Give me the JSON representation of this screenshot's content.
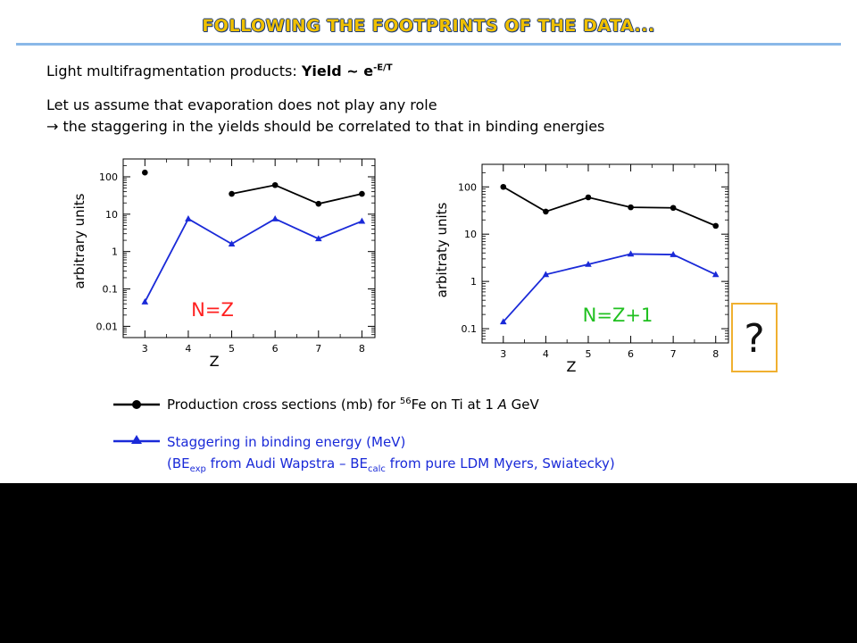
{
  "title": "FOLLOWING THE FOOTPRINTS OF THE DATA...",
  "line1": {
    "prefix": "Light multifragmentation products: ",
    "yield_label": "Yield ~ e",
    "exponent": "-E/T"
  },
  "line2": "Let us assume that evaporation does not play any role",
  "line3": {
    "arrow": "→",
    "text": " the staggering in the yields should be correlated to that in binding energies"
  },
  "question_mark": "?",
  "legend": {
    "black_series": {
      "text1": "Production cross sections (mb)   for ",
      "mass_number": "56",
      "text2": "Fe on Ti at 1 ",
      "unit_a": "A",
      "text3": " GeV"
    },
    "blue_series": {
      "line1": "Staggering in binding energy (MeV)",
      "line2_a": "(BE",
      "sub_exp": "exp",
      "line2_b": " from Audi Wapstra – BE",
      "sub_calc": "calc",
      "line2_c": " from pure LDM Myers, Swiatecky)"
    }
  },
  "colors": {
    "title": "#f0c000",
    "rule": "#8ab8e8",
    "black_series": "#000000",
    "blue_series": "#1a2ad8",
    "panel_label": "#ff2020",
    "panel_label_2": "#20c020"
  },
  "chart_data": [
    {
      "type": "line",
      "xlabel": "Z",
      "ylabel": "arbitrary units",
      "panel_label": "N=Z",
      "yscale": "log",
      "ylim": [
        0.005,
        300
      ],
      "xlim": [
        2.5,
        8.3
      ],
      "x_ticks": [
        "3",
        "4",
        "5",
        "6",
        "7",
        "8"
      ],
      "y_ticks": [
        "0.01",
        "0.1",
        "1",
        "10",
        "100"
      ],
      "series": [
        {
          "color": "black",
          "marker": "circle",
          "x": [
            3
          ],
          "y": [
            130
          ],
          "connected": false
        },
        {
          "color": "black",
          "marker": "circle",
          "x": [
            5,
            6,
            7,
            8
          ],
          "y": [
            35,
            60,
            19,
            35
          ],
          "connected": true
        },
        {
          "color": "blue",
          "marker": "triangle",
          "x": [
            3,
            4,
            5,
            6,
            7,
            8
          ],
          "y": [
            0.045,
            7.5,
            1.6,
            7.5,
            2.2,
            6.5
          ],
          "connected": true
        }
      ]
    },
    {
      "type": "line",
      "xlabel": "Z",
      "ylabel": "arbitraty units",
      "panel_label": "N=Z+1",
      "yscale": "log",
      "ylim": [
        0.05,
        300
      ],
      "xlim": [
        2.5,
        8.3
      ],
      "x_ticks": [
        "3",
        "4",
        "5",
        "6",
        "7",
        "8"
      ],
      "y_ticks": [
        "0.1",
        "1",
        "10",
        "100"
      ],
      "series": [
        {
          "color": "black",
          "marker": "circle",
          "x": [
            3,
            4,
            5,
            6,
            7,
            8
          ],
          "y": [
            100,
            30,
            60,
            37,
            36,
            15
          ],
          "connected": true
        },
        {
          "color": "blue",
          "marker": "triangle",
          "x": [
            3,
            4,
            5,
            6,
            7,
            8
          ],
          "y": [
            0.14,
            1.4,
            2.3,
            3.8,
            3.7,
            1.4
          ],
          "connected": true
        }
      ]
    }
  ]
}
